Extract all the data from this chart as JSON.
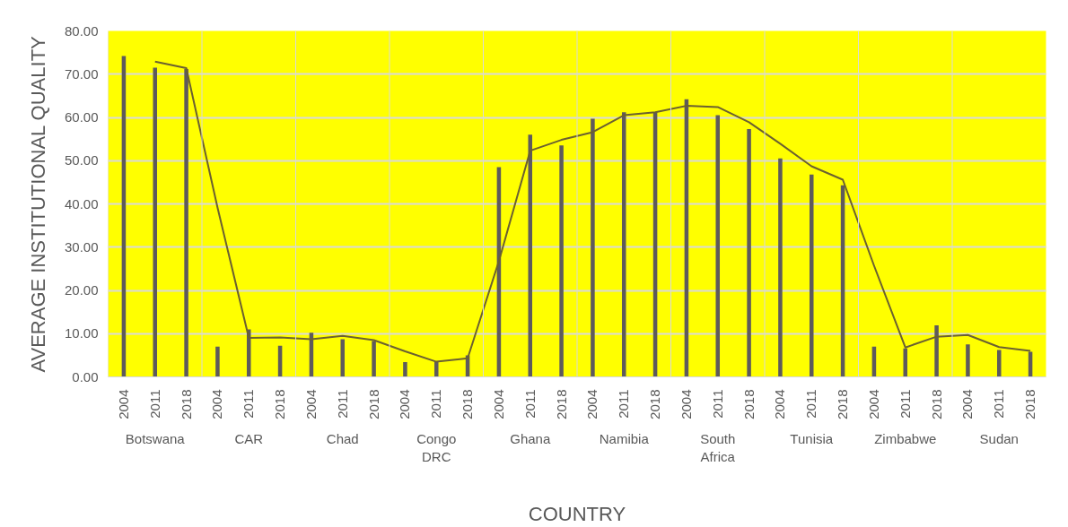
{
  "chart_data": {
    "type": "bar",
    "xlabel": "COUNTRY",
    "ylabel": "AVERAGE INSTITUTIONAL QUALITY",
    "categories": [
      "2004",
      "2011",
      "2018",
      "2004",
      "2011",
      "2018",
      "2004",
      "2011",
      "2018",
      "2004",
      "2011",
      "2018",
      "2004",
      "2011",
      "2018",
      "2004",
      "2011",
      "2018",
      "2004",
      "2011",
      "2018",
      "2004",
      "2011",
      "2018",
      "2004",
      "2011",
      "2018",
      "2004",
      "2011",
      "2018"
    ],
    "annotations": [
      "Botswana",
      "CAR",
      "Chad",
      "Congo DRC",
      "Ghana",
      "Namibia",
      "South Africa",
      "Tunisia",
      "Zimbabwe",
      "Sudan"
    ],
    "series": [
      {
        "color": "#5e5a5c",
        "values": [
          74.2,
          71.5,
          71.2,
          7.0,
          11.0,
          7.2,
          10.2,
          8.7,
          8.3,
          3.4,
          3.5,
          5.0,
          48.5,
          56.0,
          53.5,
          59.7,
          61.2,
          61.2,
          64.2,
          60.5,
          57.3,
          50.5,
          46.8,
          44.3,
          7.0,
          6.6,
          11.9,
          7.5,
          6.2,
          5.8
        ]
      },
      {
        "type": "line",
        "color": "#6b6030",
        "values": [
          null,
          72.9,
          71.4,
          39.1,
          9.0,
          9.1,
          8.7,
          9.5,
          8.5,
          5.9,
          3.5,
          4.3,
          26.8,
          52.3,
          54.8,
          56.6,
          60.5,
          61.2,
          62.7,
          62.4,
          58.9,
          53.9,
          48.7,
          45.6,
          25.7,
          6.8,
          9.3,
          9.7,
          6.9,
          6.0
        ]
      }
    ],
    "ylim": [
      0,
      80
    ],
    "yticks": [
      {
        "value": 0,
        "label": "0.00"
      },
      {
        "value": 10,
        "label": "10.00"
      },
      {
        "value": 20,
        "label": "20.00"
      },
      {
        "value": 30,
        "label": "30.00"
      },
      {
        "value": 40,
        "label": "40.00"
      },
      {
        "value": 50,
        "label": "50.00"
      },
      {
        "value": 60,
        "label": "60.00"
      },
      {
        "value": 70,
        "label": "70.00"
      },
      {
        "value": 80,
        "label": "80.00"
      }
    ],
    "grid": "y"
  }
}
